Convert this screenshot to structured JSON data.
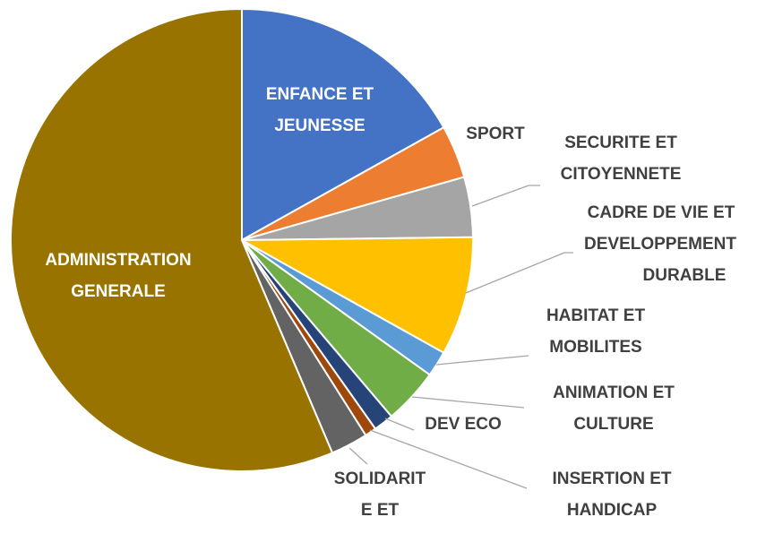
{
  "chart_data": {
    "type": "pie",
    "categories": [
      [
        "ENFANCE ET",
        "JEUNESSE"
      ],
      [
        "SPORT"
      ],
      [
        "SECURITE ET",
        "CITOYENNETE"
      ],
      [
        "CADRE DE VIE ET",
        "DEVELOPPEMENT",
        "DURABLE"
      ],
      [
        "HABITAT ET",
        "MOBILITES"
      ],
      [
        "ANIMATION ET",
        "CULTURE"
      ],
      [
        "DEV ECO"
      ],
      [
        "INSERTION ET",
        "HANDICAP"
      ],
      [
        "SOLIDARIT",
        "E ET"
      ],
      [
        "ADMINISTRATION",
        "GENERALE"
      ]
    ],
    "values": [
      16.9,
      3.7,
      4.2,
      8.3,
      1.8,
      3.9,
      1.4,
      0.8,
      2.6,
      56.4
    ],
    "colors": [
      "#4472c4",
      "#ed7d31",
      "#a5a5a5",
      "#ffc000",
      "#5b9bd5",
      "#70ad47",
      "#264478",
      "#9e480e",
      "#636363",
      "#997300"
    ]
  }
}
